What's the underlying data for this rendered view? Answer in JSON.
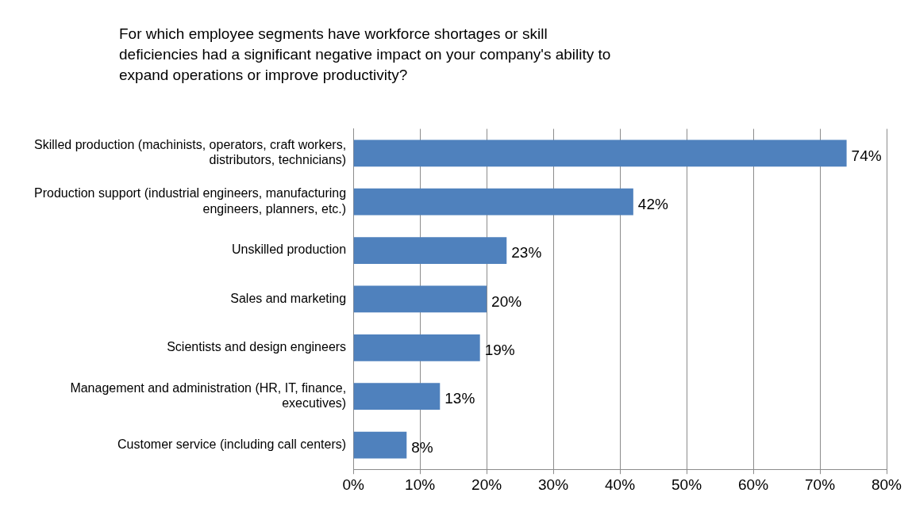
{
  "chart_data": {
    "type": "bar",
    "orientation": "horizontal",
    "title": "For which employee segments have workforce shortages or skill deficiencies had a significant negative impact on your company's ability to expand operations or improve productivity?",
    "categories": [
      "Skilled production (machinists, operators, craft workers, distributors, technicians)",
      "Production support (industrial engineers, manufacturing engineers, planners, etc.)",
      "Unskilled production",
      "Sales and marketing",
      "Scientists and design engineers",
      "Management and administration (HR, IT, finance, executives)",
      "Customer service (including call centers)"
    ],
    "values": [
      74,
      42,
      23,
      20,
      19,
      13,
      8
    ],
    "value_labels": [
      "74%",
      "42%",
      "23%",
      "20%",
      "19%",
      "13%",
      "8%"
    ],
    "color": "#4f81bd",
    "xlim": [
      0,
      80
    ],
    "xticks": [
      {
        "value": 0,
        "label": "0%"
      },
      {
        "value": 10,
        "label": "10%"
      },
      {
        "value": 20,
        "label": "20%"
      },
      {
        "value": 30,
        "label": "30%"
      },
      {
        "value": 40,
        "label": "40%"
      },
      {
        "value": 50,
        "label": "50%"
      },
      {
        "value": 60,
        "label": "60%"
      },
      {
        "value": 70,
        "label": "70%"
      },
      {
        "value": 80,
        "label": "80%"
      }
    ],
    "grid": "x",
    "legend": false
  }
}
